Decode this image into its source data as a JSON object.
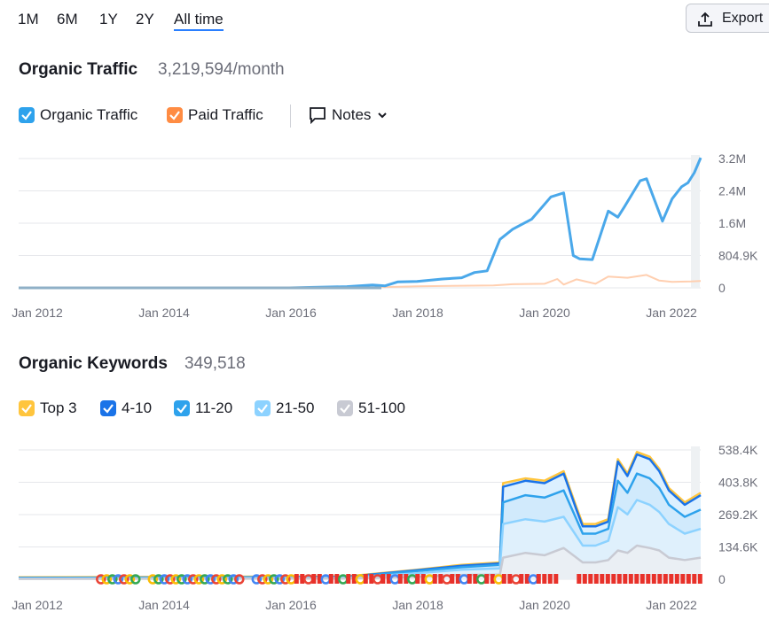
{
  "periods": [
    {
      "label": "1M",
      "active": false
    },
    {
      "label": "6M",
      "active": false
    },
    {
      "label": "1Y",
      "active": false
    },
    {
      "label": "2Y",
      "active": false
    },
    {
      "label": "All time",
      "active": true
    }
  ],
  "export_label": "Export",
  "icons": {
    "export": "upload-icon",
    "notes": "comment-icon",
    "chevron": "chevron-down-icon",
    "checkbox": "check-icon"
  },
  "traffic": {
    "title": "Organic Traffic",
    "value": "3,219,594/month",
    "legend": [
      {
        "label": "Organic Traffic",
        "color": "#2ea2ec"
      },
      {
        "label": "Paid Traffic",
        "color": "#ff8c43"
      }
    ],
    "notes_label": "Notes"
  },
  "keywords": {
    "title": "Organic Keywords",
    "value": "349,518",
    "legend": [
      {
        "label": "Top 3",
        "color": "#ffc53d"
      },
      {
        "label": "4-10",
        "color": "#1a73e8"
      },
      {
        "label": "11-20",
        "color": "#2ea2ec"
      },
      {
        "label": "21-50",
        "color": "#8cd2ff"
      },
      {
        "label": "51-100",
        "color": "#c8cad3"
      }
    ]
  },
  "chart_data": [
    {
      "type": "line",
      "x_ticks": [
        "Jan 2012",
        "Jan 2014",
        "Jan 2016",
        "Jan 2018",
        "Jan 2020",
        "Jan 2022"
      ],
      "y_ticks": [
        "0",
        "804.9K",
        "1.6M",
        "2.4M",
        "3.2M"
      ],
      "ylim": [
        0,
        3200000
      ],
      "xlim": [
        2011.75,
        2022.45
      ],
      "grid": true,
      "series": [
        {
          "name": "Organic Traffic",
          "color": "#4aa8ea",
          "x": [
            2011.75,
            2014.0,
            2016.0,
            2016.9,
            2017.3,
            2017.5,
            2017.7,
            2018.0,
            2018.4,
            2018.7,
            2018.9,
            2019.1,
            2019.3,
            2019.5,
            2019.8,
            2020.1,
            2020.3,
            2020.45,
            2020.55,
            2020.75,
            2021.0,
            2021.15,
            2021.25,
            2021.5,
            2021.6,
            2021.85,
            2022.0,
            2022.15,
            2022.25,
            2022.35,
            2022.45
          ],
          "y": [
            0,
            0,
            0,
            30000,
            70000,
            50000,
            150000,
            160000,
            220000,
            250000,
            380000,
            420000,
            1200000,
            1450000,
            1700000,
            2250000,
            2350000,
            800000,
            720000,
            700000,
            1900000,
            1750000,
            2000000,
            2650000,
            2700000,
            1650000,
            2200000,
            2500000,
            2600000,
            2850000,
            3219594
          ]
        },
        {
          "name": "Paid Traffic",
          "color": "#ffcfb0",
          "x": [
            2011.75,
            2017.1,
            2017.5,
            2018.0,
            2019.2,
            2019.5,
            2020.0,
            2020.2,
            2020.3,
            2020.5,
            2020.8,
            2021.0,
            2021.3,
            2021.6,
            2021.8,
            2022.0,
            2022.3,
            2022.45
          ],
          "y": [
            0,
            0,
            20000,
            40000,
            60000,
            90000,
            100000,
            220000,
            80000,
            210000,
            100000,
            280000,
            250000,
            320000,
            180000,
            150000,
            160000,
            170000
          ]
        }
      ]
    },
    {
      "type": "area",
      "x_ticks": [
        "Jan 2012",
        "Jan 2014",
        "Jan 2016",
        "Jan 2018",
        "Jan 2020",
        "Jan 2022"
      ],
      "y_ticks": [
        "0",
        "134.6K",
        "269.2K",
        "403.8K",
        "538.4K"
      ],
      "ylim": [
        0,
        538400
      ],
      "xlim": [
        2011.75,
        2022.45
      ],
      "grid": true,
      "x": [
        2011.75,
        2016.9,
        2018.0,
        2018.7,
        2019.3,
        2019.35,
        2019.7,
        2020.0,
        2020.3,
        2020.5,
        2020.6,
        2020.8,
        2021.0,
        2021.15,
        2021.3,
        2021.45,
        2021.65,
        2021.8,
        2021.95,
        2022.2,
        2022.45
      ],
      "series": [
        {
          "name": "Top 3",
          "color": "#ffc53d",
          "values": [
            8000,
            12000,
            40000,
            60000,
            70000,
            400000,
            420000,
            410000,
            450000,
            300000,
            230000,
            230000,
            250000,
            500000,
            440000,
            530000,
            510000,
            460000,
            380000,
            320000,
            360000
          ]
        },
        {
          "name": "4-10",
          "color": "#1a73e8",
          "values": [
            6000,
            10000,
            38000,
            56000,
            66000,
            385000,
            410000,
            400000,
            440000,
            290000,
            220000,
            220000,
            240000,
            490000,
            430000,
            520000,
            500000,
            450000,
            370000,
            310000,
            350000
          ]
        },
        {
          "name": "11-20",
          "color": "#2ea2ec",
          "values": [
            5000,
            9000,
            34000,
            50000,
            60000,
            320000,
            350000,
            340000,
            370000,
            250000,
            190000,
            190000,
            210000,
            410000,
            360000,
            440000,
            420000,
            380000,
            310000,
            260000,
            290000
          ]
        },
        {
          "name": "21-50",
          "color": "#8cd2ff",
          "values": [
            3000,
            6000,
            25000,
            40000,
            45000,
            230000,
            250000,
            240000,
            260000,
            180000,
            140000,
            140000,
            160000,
            300000,
            270000,
            330000,
            310000,
            280000,
            230000,
            190000,
            210000
          ]
        },
        {
          "name": "51-100",
          "color": "#c8cad3",
          "values": [
            1500,
            3000,
            10000,
            18000,
            20000,
            90000,
            110000,
            100000,
            130000,
            90000,
            70000,
            70000,
            80000,
            120000,
            110000,
            140000,
            130000,
            120000,
            90000,
            80000,
            90000
          ]
        }
      ],
      "google_markers_range": [
        2013.0,
        2022.45
      ]
    }
  ]
}
